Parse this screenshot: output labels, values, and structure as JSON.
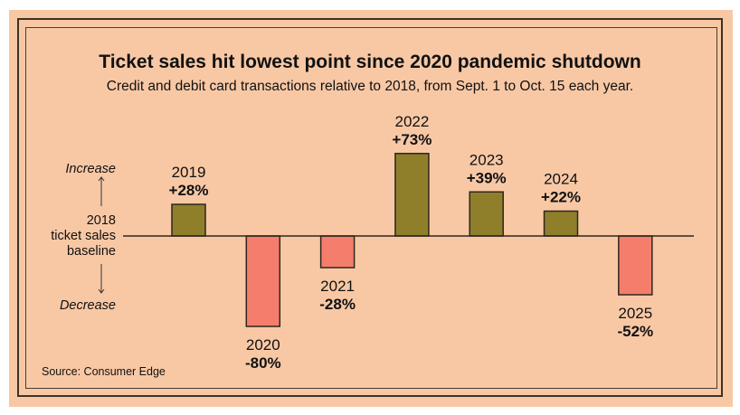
{
  "chart_data": {
    "type": "bar",
    "title": "Ticket sales hit lowest point since 2020 pandemic shutdown",
    "subtitle": "Credit and debit card transactions relative to 2018, from Sept. 1 to Oct. 15 each year.",
    "categories": [
      "2019",
      "2020",
      "2021",
      "2022",
      "2023",
      "2024",
      "2025"
    ],
    "values": [
      28,
      -80,
      -28,
      73,
      39,
      22,
      -52
    ],
    "value_labels": [
      "+28%",
      "-80%",
      "-28%",
      "+73%",
      "+39%",
      "+22%",
      "-52%"
    ],
    "baseline_label": [
      "2018",
      "ticket sales",
      "baseline"
    ],
    "increase_label": "Increase",
    "decrease_label": "Decrease",
    "source": "Source: Consumer Edge",
    "ylabel": "",
    "xlabel": "",
    "colors": {
      "positive": "#8f7f2b",
      "negative": "#f47e6b"
    }
  }
}
